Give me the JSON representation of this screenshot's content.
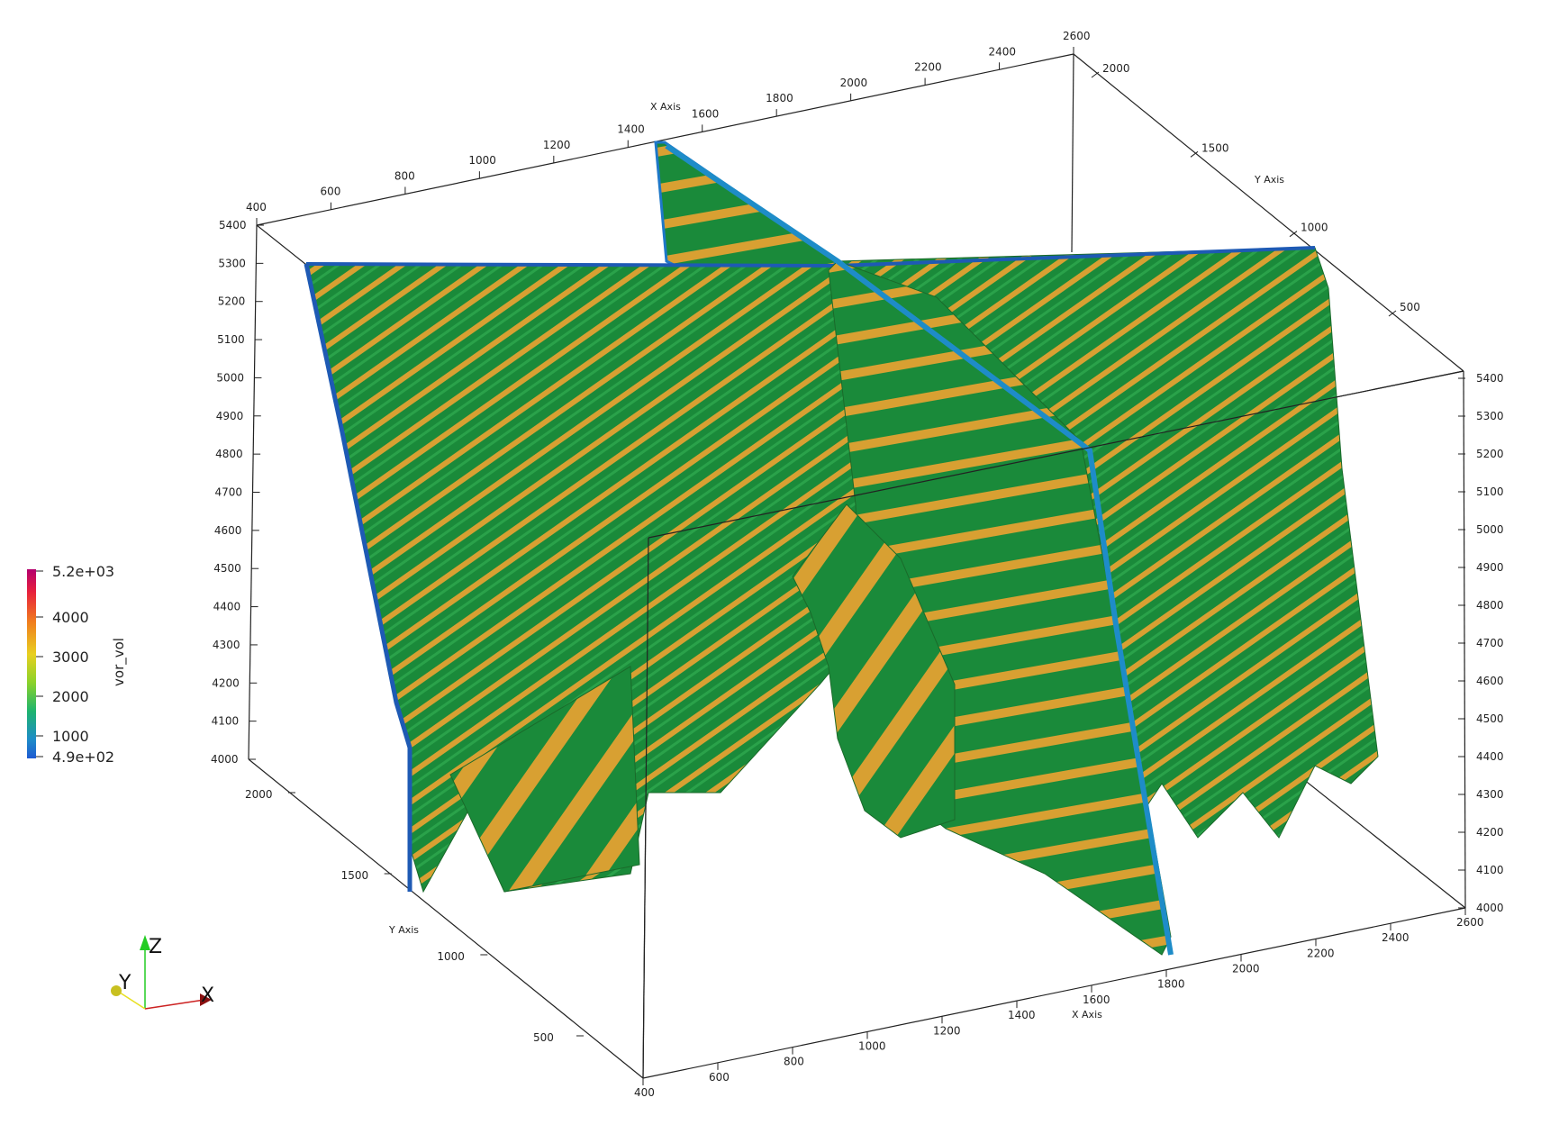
{
  "viewer": {
    "x_axis": {
      "title": "X Axis",
      "ticks_top": [
        "400",
        "600",
        "800",
        "1000",
        "1200",
        "1400",
        "1600",
        "1800",
        "2000",
        "2200",
        "2400",
        "2600"
      ],
      "ticks_bottom": [
        "400",
        "600",
        "800",
        "1000",
        "1200",
        "1400",
        "1600",
        "1800",
        "2000",
        "2200",
        "2400",
        "2600"
      ]
    },
    "y_axis": {
      "title": "Y Axis",
      "ticks_right": [
        "2000",
        "1500",
        "1000",
        "500"
      ],
      "ticks_left": [
        "2000",
        "1500",
        "1000",
        "500"
      ]
    },
    "z_axis": {
      "ticks": [
        "5400",
        "5300",
        "5200",
        "5100",
        "5000",
        "4900",
        "4800",
        "4700",
        "4600",
        "4500",
        "4400",
        "4300",
        "4200",
        "4100",
        "4000"
      ]
    },
    "scalar_bar": {
      "title": "vor_vol",
      "max_label": "5.2e+03",
      "labels": [
        "4000",
        "3000",
        "2000",
        "1000"
      ],
      "min_label": "4.9e+02",
      "colors": [
        "#b4006e",
        "#e8203c",
        "#f07e1e",
        "#e8d020",
        "#8ad22a",
        "#1eb46e",
        "#1e8cc8",
        "#1e5ad2"
      ]
    },
    "orientation_axes": {
      "z_label": "Z",
      "y_label": "Y",
      "x_label": "X",
      "z_color": "#22cc22",
      "y_color": "#e8e020",
      "x_color": "#cc2222"
    },
    "colors": {
      "green": "#1a8a3a",
      "green_light": "#2aa24a",
      "orange": "#d8a032",
      "blue": "#1e78c8",
      "red": "#d83a2a"
    }
  }
}
